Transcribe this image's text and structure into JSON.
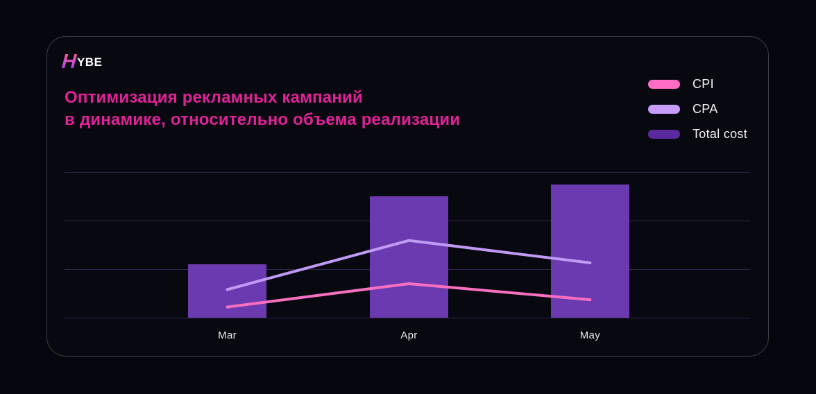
{
  "page": {
    "background": "#06060e"
  },
  "card": {
    "background": "#080811",
    "border_color": "#3f3f4b"
  },
  "logo": {
    "mark": "H",
    "rest": "YBE",
    "gradient_top": "#ff5c93",
    "gradient_bottom": "#8a3ff0"
  },
  "title": {
    "line1": "Оптимизация рекламных кампаний",
    "line2": "в динамике, относительно объема реализации",
    "color": "#e12297"
  },
  "legend": {
    "items": [
      {
        "label": "CPI",
        "color": "#ff6ec4"
      },
      {
        "label": "CPA",
        "color": "#c79cfa"
      },
      {
        "label": "Total cost",
        "color": "#5c2aa0"
      }
    ]
  },
  "chart_data": {
    "type": "bar",
    "subtype": "bar+line combo",
    "title": "Оптимизация рекламных кампаний в динамике, относительно объема реализации",
    "categories": [
      "Mar",
      "Apr",
      "May"
    ],
    "series": [
      {
        "name": "Total cost",
        "type": "bar",
        "color": "#6b3ab0",
        "legend_color": "#5c2aa0",
        "values": [
          1.1,
          2.5,
          2.75
        ]
      },
      {
        "name": "CPA",
        "type": "line",
        "color": "#c09af5",
        "legend_color": "#c79cfa",
        "values": [
          0.58,
          1.59,
          1.13
        ]
      },
      {
        "name": "CPI",
        "type": "line",
        "color": "#fa70c0",
        "legend_color": "#ff6ec4",
        "values": [
          0.22,
          0.7,
          0.37
        ]
      }
    ],
    "xlabel": "",
    "ylabel": "",
    "ylim": [
      0,
      3
    ],
    "y_unit": "relative units — no y-axis tick labels shown",
    "gridline_count": 4,
    "grid": true,
    "gridline_color": "#2d2847",
    "legend_position": "top-right",
    "axis_label_color": "#e9e7f0"
  }
}
